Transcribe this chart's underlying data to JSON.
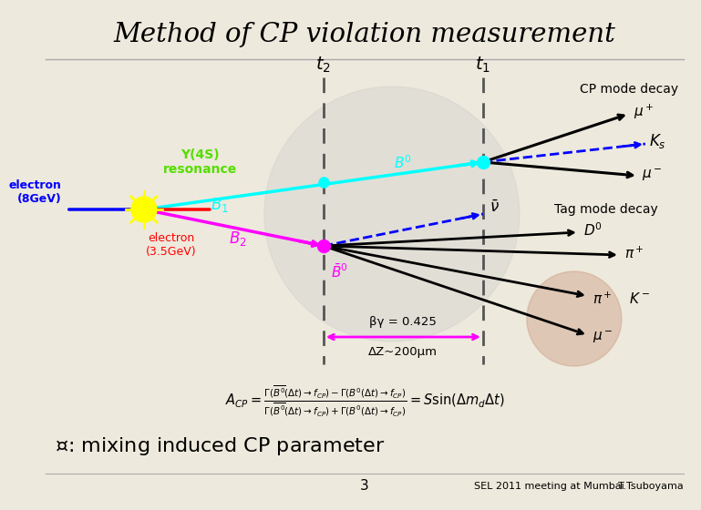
{
  "title": "Method of CP violation measurement",
  "bg_color": "#ede9dc",
  "title_color": "#000000",
  "title_fontsize": 21,
  "electron_label": "electron\n(8GeV)",
  "electron_color": "#0000cc",
  "positron_label": "electron\n(3.5GeV)",
  "positron_color": "#cc0000",
  "upsilon_label": "Y(4S)\nresonance",
  "upsilon_color": "#44cc00",
  "t1_label": "t_1",
  "t2_label": "t_2",
  "cp_mode_label": "CP mode decay",
  "tag_mode_label": "Tag mode decay",
  "beta_gamma_label": "βγ = 0.425",
  "delta_z_label": "ΔZ~200μm",
  "page_number": "3",
  "footer_left": "SEL 2011 meeting at Mumbai",
  "footer_right": "T.Tsuboyama"
}
